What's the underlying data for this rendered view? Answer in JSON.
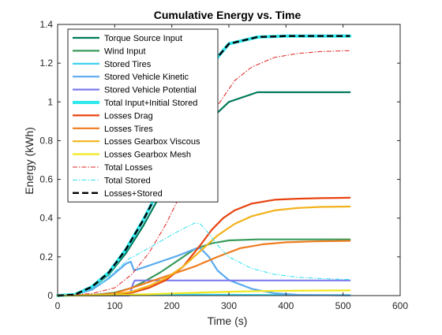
{
  "chart_data": {
    "type": "line",
    "title": "Cumulative Energy vs. Time",
    "xlabel": "Time (s)",
    "ylabel": "Energy (kWh)",
    "xlim": [
      0,
      600
    ],
    "ylim": [
      0,
      1.4
    ],
    "xticks": [
      0,
      100,
      200,
      300,
      400,
      500,
      600
    ],
    "yticks": [
      0,
      0.2,
      0.4,
      0.6,
      0.8,
      1,
      1.2,
      1.4
    ],
    "xtick_labels": [
      "0",
      "100",
      "200",
      "300",
      "400",
      "500",
      "600"
    ],
    "ytick_labels": [
      "0",
      "0.2",
      "0.4",
      "0.6",
      "0.8",
      "1",
      "1.2",
      "1.4"
    ],
    "grid": false,
    "legend_position": "top-left",
    "series": [
      {
        "name": "Torque Source Input",
        "color": "#007a5a",
        "width": 2.2,
        "dash": "",
        "x": [
          0,
          30,
          60,
          90,
          120,
          150,
          180,
          200,
          220,
          250,
          300,
          350,
          400,
          450,
          512
        ],
        "y": [
          0,
          0.005,
          0.04,
          0.11,
          0.22,
          0.36,
          0.52,
          0.62,
          0.72,
          0.86,
          1.0,
          1.05,
          1.05,
          1.05,
          1.05
        ]
      },
      {
        "name": "Wind Input",
        "color": "#3a9b5c",
        "width": 2.2,
        "dash": "",
        "x": [
          0,
          60,
          100,
          130,
          150,
          180,
          210,
          240,
          270,
          300,
          350,
          400,
          450,
          512
        ],
        "y": [
          0,
          0.003,
          0.015,
          0.04,
          0.07,
          0.12,
          0.18,
          0.24,
          0.27,
          0.285,
          0.29,
          0.29,
          0.29,
          0.29
        ]
      },
      {
        "name": "Stored Tires",
        "color": "#33cfee",
        "width": 2.2,
        "dash": "",
        "x": [
          0,
          100,
          130,
          200,
          300,
          400,
          512
        ],
        "y": [
          0,
          0.003,
          0.005,
          0.005,
          0.004,
          0.003,
          0.003
        ]
      },
      {
        "name": "Stored Vehicle Kinetic",
        "color": "#59aaee",
        "width": 2.2,
        "dash": "",
        "x": [
          0,
          30,
          60,
          90,
          120,
          128,
          134,
          150,
          180,
          210,
          240,
          250,
          265,
          280,
          300,
          340,
          380,
          420,
          512
        ],
        "y": [
          0,
          0.005,
          0.03,
          0.09,
          0.165,
          0.175,
          0.13,
          0.145,
          0.175,
          0.205,
          0.24,
          0.245,
          0.2,
          0.13,
          0.08,
          0.035,
          0.012,
          0.004,
          0.001
        ]
      },
      {
        "name": "Stored Vehicle Potential",
        "color": "#7c7cee",
        "width": 2.2,
        "dash": "",
        "x": [
          0,
          125,
          128,
          132,
          135,
          200,
          300,
          400,
          512
        ],
        "y": [
          0,
          0,
          0.02,
          0.06,
          0.078,
          0.078,
          0.078,
          0.078,
          0.078
        ]
      },
      {
        "name": "Total Input+Initial Stored",
        "color": "#2ee8ee",
        "width": 4,
        "dash": "",
        "x": [
          0,
          30,
          60,
          90,
          120,
          150,
          180,
          200,
          220,
          250,
          280,
          300,
          350,
          400,
          450,
          512
        ],
        "y": [
          0,
          0.005,
          0.045,
          0.12,
          0.24,
          0.39,
          0.56,
          0.68,
          0.8,
          1.02,
          1.23,
          1.3,
          1.335,
          1.34,
          1.34,
          1.34
        ]
      },
      {
        "name": "Losses Drag",
        "color": "#e8420f",
        "width": 2.2,
        "dash": "",
        "x": [
          0,
          90,
          130,
          160,
          190,
          220,
          250,
          270,
          290,
          310,
          340,
          380,
          420,
          460,
          512
        ],
        "y": [
          0,
          0.003,
          0.015,
          0.04,
          0.08,
          0.15,
          0.26,
          0.34,
          0.4,
          0.44,
          0.475,
          0.495,
          0.5,
          0.503,
          0.505
        ]
      },
      {
        "name": "Losses Tires",
        "color": "#ef7c1e",
        "width": 2.2,
        "dash": "",
        "x": [
          0,
          60,
          100,
          130,
          160,
          200,
          240,
          280,
          320,
          360,
          400,
          450,
          512
        ],
        "y": [
          0,
          0.003,
          0.012,
          0.04,
          0.07,
          0.11,
          0.15,
          0.2,
          0.245,
          0.265,
          0.275,
          0.28,
          0.283
        ]
      },
      {
        "name": "Losses Gearbox Viscous",
        "color": "#f2b21a",
        "width": 2.2,
        "dash": "",
        "x": [
          0,
          90,
          130,
          160,
          190,
          220,
          250,
          280,
          310,
          340,
          380,
          420,
          460,
          512
        ],
        "y": [
          0,
          0.004,
          0.02,
          0.05,
          0.09,
          0.15,
          0.23,
          0.31,
          0.37,
          0.41,
          0.44,
          0.452,
          0.458,
          0.46
        ]
      },
      {
        "name": "Losses Gearbox Mesh",
        "color": "#f0e81e",
        "width": 2.2,
        "dash": "",
        "x": [
          0,
          100,
          150,
          200,
          250,
          300,
          350,
          400,
          450,
          512
        ],
        "y": [
          0,
          0.002,
          0.006,
          0.011,
          0.016,
          0.02,
          0.023,
          0.025,
          0.026,
          0.027
        ]
      },
      {
        "name": "Total Losses",
        "color": "#e02020",
        "width": 1,
        "dash": "6 2 1.5 2",
        "x": [
          0,
          60,
          100,
          130,
          160,
          190,
          220,
          250,
          280,
          310,
          340,
          380,
          420,
          460,
          512
        ],
        "y": [
          0,
          0.01,
          0.04,
          0.11,
          0.22,
          0.37,
          0.55,
          0.78,
          0.98,
          1.11,
          1.18,
          1.23,
          1.25,
          1.26,
          1.265
        ]
      },
      {
        "name": "Total Stored",
        "color": "#2ee0ee",
        "width": 1,
        "dash": "6 2 1.5 2",
        "x": [
          0,
          40,
          80,
          110,
          125,
          132,
          150,
          180,
          210,
          240,
          250,
          265,
          280,
          300,
          340,
          380,
          420,
          460,
          512
        ],
        "y": [
          0,
          0.01,
          0.07,
          0.15,
          0.19,
          0.2,
          0.23,
          0.28,
          0.33,
          0.375,
          0.37,
          0.32,
          0.26,
          0.2,
          0.14,
          0.11,
          0.095,
          0.088,
          0.083
        ]
      },
      {
        "name": "Losses+Stored",
        "color": "#000000",
        "width": 2.4,
        "dash": "8 4",
        "x": [
          0,
          30,
          60,
          90,
          120,
          150,
          180,
          200,
          220,
          250,
          280,
          300,
          350,
          400,
          450,
          512
        ],
        "y": [
          0,
          0.005,
          0.045,
          0.12,
          0.24,
          0.39,
          0.56,
          0.68,
          0.8,
          1.02,
          1.23,
          1.3,
          1.335,
          1.34,
          1.34,
          1.34
        ]
      }
    ]
  }
}
